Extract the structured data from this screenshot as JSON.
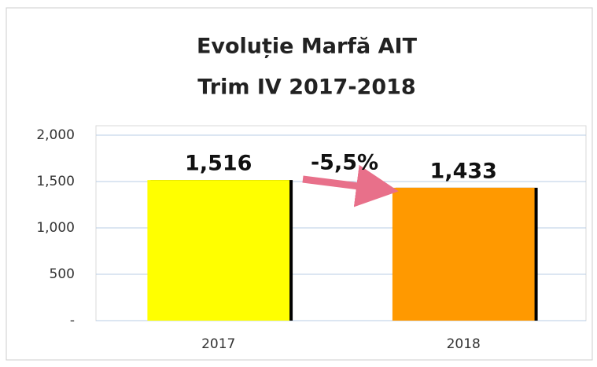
{
  "chart_data": {
    "type": "bar",
    "title": "Evoluție Marfă AIT",
    "subtitle": "Trim IV 2017-2018",
    "categories": [
      "2017",
      "2018"
    ],
    "values": [
      1516,
      1433
    ],
    "value_labels": [
      "1,516",
      "1,433"
    ],
    "colors": [
      "#ffff00",
      "#ff9900"
    ],
    "annotation": "-5,5%",
    "ylim": [
      0,
      2000
    ],
    "yticks": [
      {
        "value": 0,
        "label": "-"
      },
      500,
      {
        "value": 1000,
        "label": "1,000"
      },
      {
        "value": 1500,
        "label": "1,500"
      },
      {
        "value": 2000,
        "label": "2,000"
      }
    ],
    "grid": true
  }
}
